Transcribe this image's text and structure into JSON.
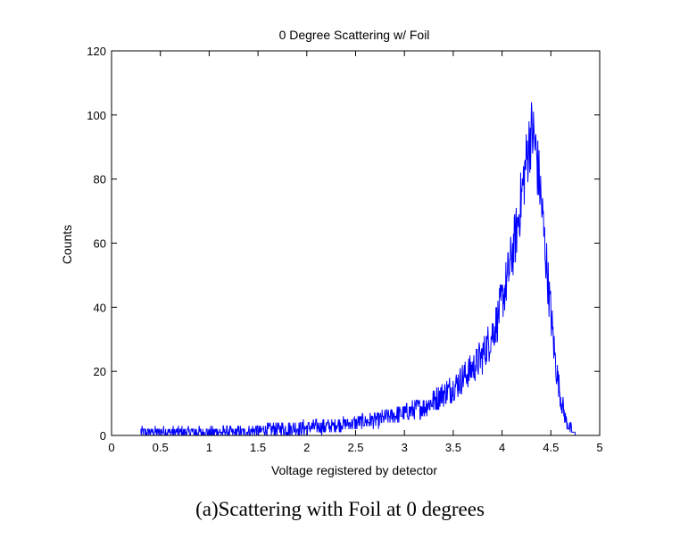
{
  "chart_data": {
    "type": "line",
    "title": "0 Degree Scattering w/ Foil",
    "xlabel": "Voltage registered by detector",
    "ylabel": "Counts",
    "xlim": [
      0,
      5
    ],
    "ylim": [
      0,
      120
    ],
    "xticks": [
      0,
      0.5,
      1,
      1.5,
      2,
      2.5,
      3,
      3.5,
      4,
      4.5,
      5
    ],
    "xtick_labels": [
      "0",
      "0.5",
      "1",
      "1.5",
      "2",
      "2.5",
      "3",
      "3.5",
      "4",
      "4.5",
      "5"
    ],
    "yticks": [
      0,
      20,
      40,
      60,
      80,
      100,
      120
    ],
    "ytick_labels": [
      "0",
      "20",
      "40",
      "60",
      "80",
      "100",
      "120"
    ],
    "grid": false,
    "line_color": "#0000ff",
    "series": [
      {
        "x": [
          0.3,
          0.5,
          0.75,
          1.0,
          1.25,
          1.5,
          1.75,
          2.0,
          2.25,
          2.5,
          2.75,
          3.0,
          3.1,
          3.2,
          3.3,
          3.4,
          3.5,
          3.6,
          3.7,
          3.8,
          3.85,
          3.9,
          3.95,
          4.0,
          4.05,
          4.1,
          4.15,
          4.2,
          4.25,
          4.28,
          4.3,
          4.33,
          4.36,
          4.4,
          4.45,
          4.5,
          4.55,
          4.6,
          4.65,
          4.7,
          4.75,
          4.8
        ],
        "y": [
          1,
          1,
          1,
          1,
          1,
          1.5,
          2,
          2.5,
          3,
          4,
          5,
          7,
          8,
          9,
          11,
          13,
          15,
          18,
          21,
          25,
          28,
          32,
          36,
          42,
          48,
          56,
          64,
          75,
          86,
          92,
          95,
          93,
          85,
          74,
          55,
          38,
          22,
          12,
          5,
          2,
          0.5,
          0
        ]
      }
    ]
  },
  "caption": "(a)Scattering with Foil at 0 degrees"
}
